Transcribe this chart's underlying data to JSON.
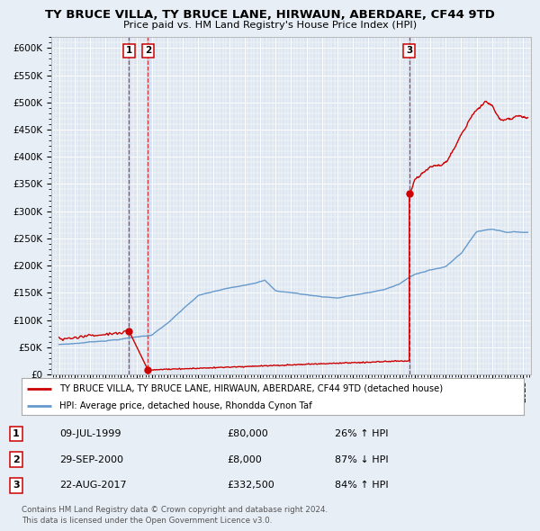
{
  "title": "TY BRUCE VILLA, TY BRUCE LANE, HIRWAUN, ABERDARE, CF44 9TD",
  "subtitle": "Price paid vs. HM Land Registry's House Price Index (HPI)",
  "legend_line1": "TY BRUCE VILLA, TY BRUCE LANE, HIRWAUN, ABERDARE, CF44 9TD (detached house)",
  "legend_line2": "HPI: Average price, detached house, Rhondda Cynon Taf",
  "footer1": "Contains HM Land Registry data © Crown copyright and database right 2024.",
  "footer2": "This data is licensed under the Open Government Licence v3.0.",
  "transactions": [
    {
      "num": 1,
      "date": "09-JUL-1999",
      "price": 80000,
      "hpi_pct": "26% ↑ HPI",
      "year": 1999.52
    },
    {
      "num": 2,
      "date": "29-SEP-2000",
      "price": 8000,
      "hpi_pct": "87% ↓ HPI",
      "year": 2000.75
    },
    {
      "num": 3,
      "date": "22-AUG-2017",
      "price": 332500,
      "hpi_pct": "84% ↑ HPI",
      "year": 2017.64
    }
  ],
  "property_color": "#cc0000",
  "hpi_color": "#6699cc",
  "background_color": "#e8eef5",
  "plot_bg_color": "#dde6f0",
  "grid_color": "#ffffff",
  "ylim": [
    0,
    620000
  ],
  "yticks": [
    0,
    50000,
    100000,
    150000,
    200000,
    250000,
    300000,
    350000,
    400000,
    450000,
    500000,
    550000,
    600000
  ],
  "xlim_start": 1994.5,
  "xlim_end": 2025.5,
  "hpi_anchors_years": [
    1995.0,
    1996.0,
    1997.0,
    1998.0,
    1999.0,
    1999.5,
    2000.0,
    2001.0,
    2002.0,
    2003.0,
    2004.0,
    2005.0,
    2006.0,
    2007.0,
    2008.3,
    2009.0,
    2010.0,
    2011.0,
    2012.0,
    2013.0,
    2014.0,
    2015.0,
    2016.0,
    2017.0,
    2017.64,
    2018.0,
    2019.0,
    2020.0,
    2021.0,
    2022.0,
    2023.0,
    2024.0,
    2025.3
  ],
  "hpi_anchors_vals": [
    55000,
    57000,
    60000,
    63000,
    66000,
    68000,
    70000,
    74000,
    95000,
    120000,
    145000,
    152000,
    158000,
    165000,
    175000,
    155000,
    152000,
    148000,
    145000,
    143000,
    148000,
    152000,
    158000,
    168000,
    180000,
    185000,
    195000,
    200000,
    225000,
    265000,
    270000,
    265000,
    265000
  ]
}
